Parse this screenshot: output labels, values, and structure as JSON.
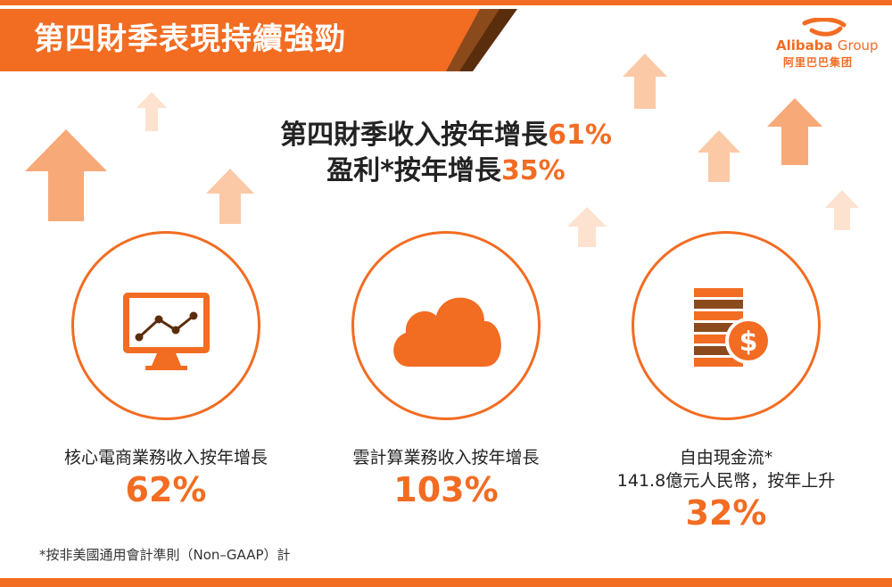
{
  "banner": {
    "title": "第四財季表現持續強勁"
  },
  "logo": {
    "brand": "Alibaba",
    "group": "Group",
    "chinese": "阿里巴巴集团"
  },
  "headline": {
    "line1_text": "第四財季收入按年增長",
    "line1_value": "61%",
    "line2_text": "盈利*按年增長",
    "line2_value": "35%"
  },
  "stats": [
    {
      "icon": "monitor-chart-icon",
      "label": "核心電商業務收入按年增長",
      "value": "62%"
    },
    {
      "icon": "cloud-icon",
      "label": "雲計算業務收入按年增長",
      "value": "103%"
    },
    {
      "icon": "coins-dollar-icon",
      "label": "自由現金流*",
      "sublabel": "141.8億元人民幣，按年上升",
      "value": "32%"
    }
  ],
  "footnote": "*按非美國通用會計準則（Non–GAAP）計",
  "colors": {
    "accent": "#f26c22",
    "accent_light": "#fbc9a6",
    "accent_pale": "#fde2cf",
    "dark_brown": "#5a2d0c",
    "brown": "#8b4a1c"
  }
}
